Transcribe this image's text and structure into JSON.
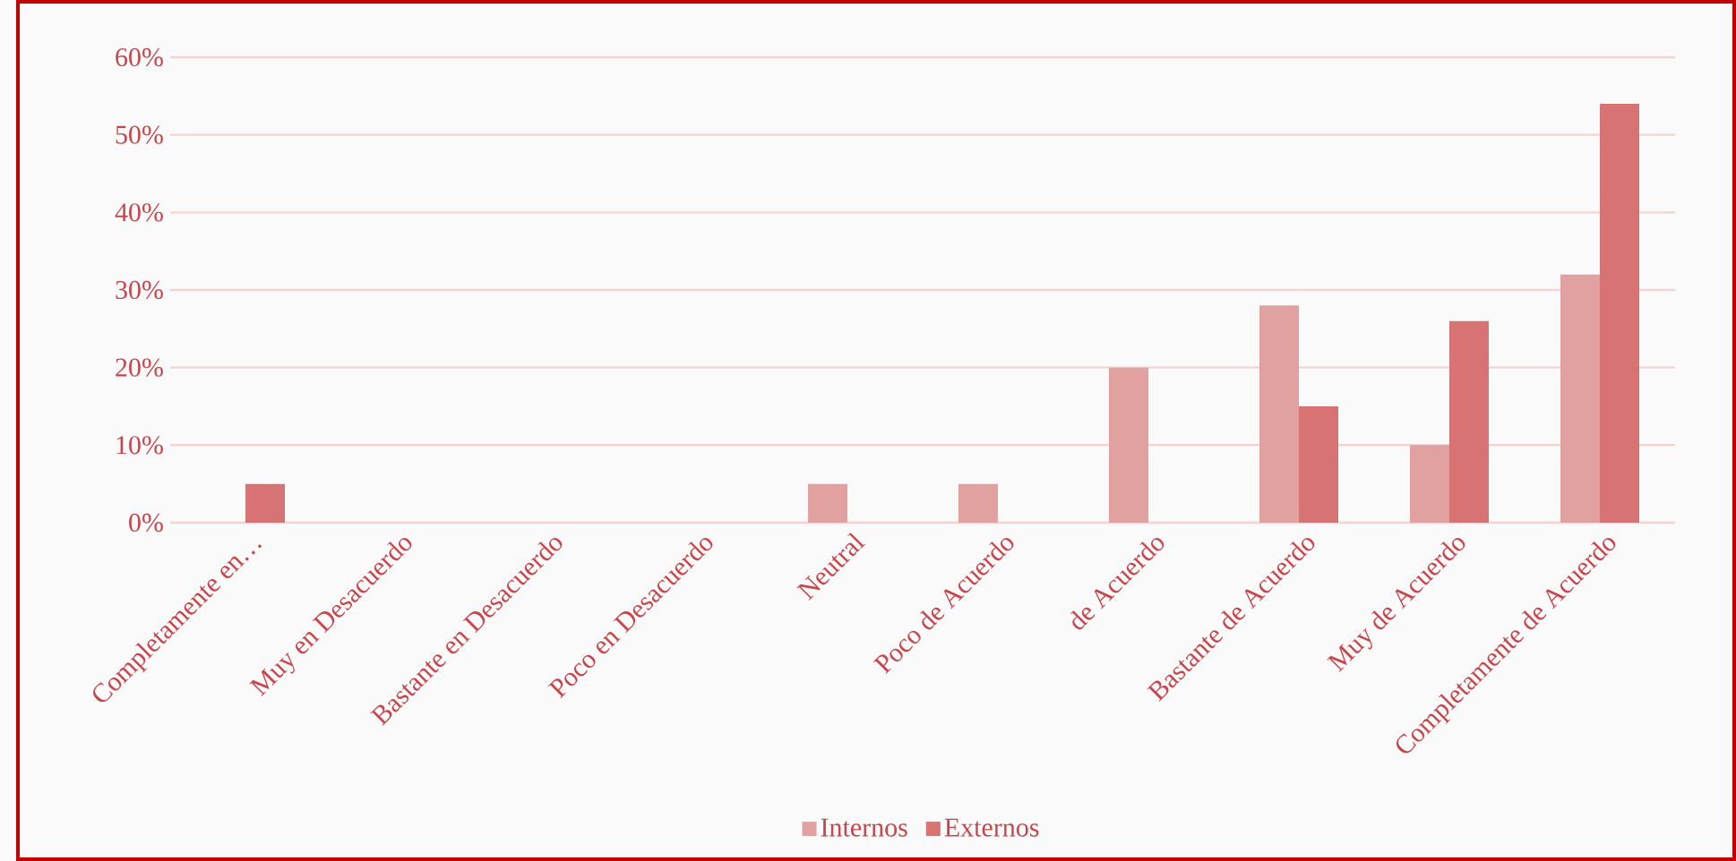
{
  "chart_data": {
    "type": "bar",
    "categories": [
      "Completamente en…",
      "Muy en Desacuerdo",
      "Bastante en Desacuerdo",
      "Poco en Desacuerdo",
      "Neutral",
      "Poco de Acuerdo",
      "de Acuerdo",
      "Bastante de Acuerdo",
      "Muy de Acuerdo",
      "Completamente de Acuerdo"
    ],
    "series": [
      {
        "name": "Internos",
        "color": "#e2a1a1",
        "values": [
          0,
          0,
          0,
          0,
          5,
          5,
          20,
          28,
          10,
          32
        ]
      },
      {
        "name": "Externos",
        "color": "#d77373",
        "values": [
          5,
          0,
          0,
          0,
          0,
          0,
          0,
          15,
          26,
          54
        ]
      }
    ],
    "ylim": [
      0,
      60
    ],
    "yticks": [
      {
        "value": 0,
        "label": "0%"
      },
      {
        "value": 10,
        "label": "10%"
      },
      {
        "value": 20,
        "label": "20%"
      },
      {
        "value": 30,
        "label": "30%"
      },
      {
        "value": 40,
        "label": "40%"
      },
      {
        "value": 50,
        "label": "50%"
      },
      {
        "value": 60,
        "label": "60%"
      }
    ],
    "grid": "y",
    "legend": "bottom"
  }
}
